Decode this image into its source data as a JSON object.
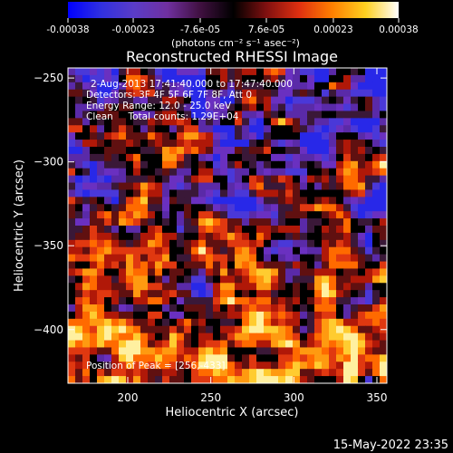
{
  "chart_data": {
    "type": "heatmap",
    "title": "Reconstructed RHESSI Image",
    "xlabel": "Heliocentric X (arcsec)",
    "ylabel": "Heliocentric Y (arcsec)",
    "xlim": [
      164,
      356
    ],
    "ylim": [
      -432,
      -244
    ],
    "x_ticks": [
      200,
      250,
      300,
      350
    ],
    "y_ticks": [
      -250,
      -300,
      -350,
      -400
    ],
    "colorbar": {
      "range": [
        -0.00038,
        0.00038
      ],
      "tick_values": [
        -0.00038,
        -0.00023,
        -7.6e-05,
        7.6e-05,
        0.00023,
        0.00038
      ],
      "tick_labels": [
        "-0.00038",
        "-0.00023",
        "-7.6e-05",
        "7.6e-05",
        "0.00023",
        "0.00038"
      ],
      "unit_label": "(photons cm⁻² s⁻¹ asec⁻²)",
      "stops": [
        "#0000ff",
        "#3030e0",
        "#5a3cc8",
        "#7030a0",
        "#401040",
        "#000000",
        "#801010",
        "#e03010",
        "#ff8000",
        "#ffd020",
        "#ffffff"
      ]
    },
    "annotations": [
      "2-Aug-2013 17:41:40.000 to 17:47:40.000",
      "Detectors: 3F 4F 5F 6F 7F 8F, Att 0",
      "Energy Range: 12.0 - 25.0 keV",
      "Clean     Total counts: 1.29E+04"
    ],
    "peak_label": "Position of Peak = [256,-433]",
    "footer_date": "15-May-2022 23:35"
  }
}
